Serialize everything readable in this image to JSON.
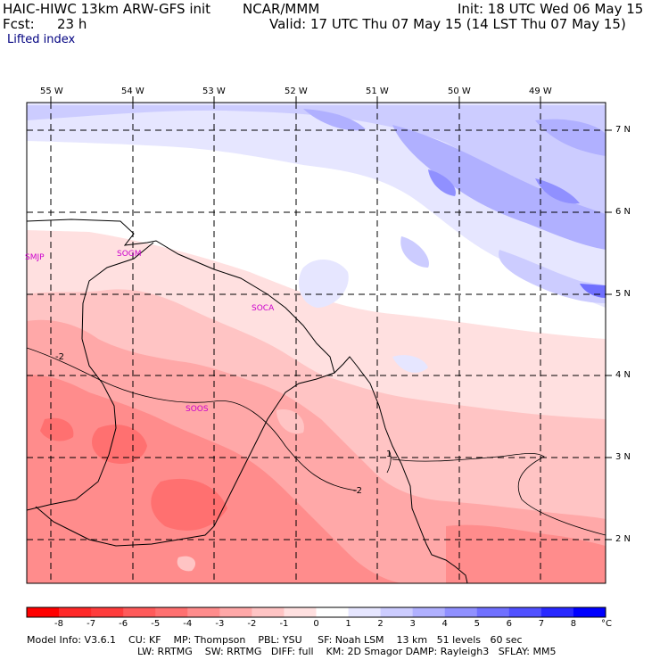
{
  "header": {
    "model": "HAIC-HIWC 13km ARW-GFS init",
    "org": "NCAR/MMM",
    "init": "Init: 18 UTC Wed 06 May 15",
    "fcst_label": "Fcst:",
    "fcst_value": "23 h",
    "valid": "Valid: 17 UTC Thu 07 May 15 (14 LST Thu 07 May 15)",
    "field": "Lifted index"
  },
  "map": {
    "longitude_labels": [
      "55 W",
      "54 W",
      "53 W",
      "52 W",
      "51 W",
      "50 W",
      "49 W"
    ],
    "latitude_labels": [
      "7 N",
      "6 N",
      "5 N",
      "4 N",
      "3 N",
      "2 N"
    ],
    "stations": [
      "SMJP",
      "SOGM",
      "SOCA",
      "SOOS"
    ],
    "contour_labels": [
      "-2",
      "-2",
      "1"
    ]
  },
  "colorbar": {
    "labels": [
      "-8",
      "-7",
      "-6",
      "-5",
      "-4",
      "-3",
      "-2",
      "-1",
      "0",
      "1",
      "2",
      "3",
      "4",
      "5",
      "6",
      "7",
      "8"
    ],
    "unit": "°C",
    "colors": [
      "#ff0000",
      "#ff2828",
      "#ff3c3c",
      "#ff5a5a",
      "#ff7070",
      "#ff8c8c",
      "#ffa8a8",
      "#ffc4c4",
      "#ffe0e0",
      "#ffffff",
      "#e6e6ff",
      "#ccccff",
      "#b0b0ff",
      "#9090ff",
      "#7070ff",
      "#5050ff",
      "#2828ff",
      "#0000ff"
    ]
  },
  "footer": {
    "line1": "Model Info: V3.6.1    CU: KF    MP: Thompson    PBL: YSU     SF: Noah LSM    13 km   51 levels   60 sec",
    "line2": "LW: RRTMG    SW: RRTMG   DIFF: full    KM: 2D Smagor DAMP: Rayleigh3   SFLAY: MM5"
  }
}
